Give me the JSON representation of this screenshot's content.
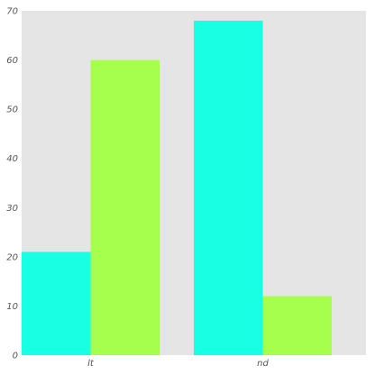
{
  "chart_data": {
    "type": "bar",
    "categories": [
      "lt",
      "nd"
    ],
    "series": [
      {
        "values": [
          21,
          68
        ],
        "color": "#19ffe3"
      },
      {
        "values": [
          60,
          12
        ],
        "color": "#a6ff4d"
      }
    ],
    "title": "",
    "xlabel": "",
    "ylabel": "",
    "ylim": [
      0,
      70
    ],
    "yticks": [
      0,
      10,
      20,
      30,
      40,
      50,
      60,
      70
    ],
    "grid": false,
    "legend": "none",
    "plot_background": "#e5e5e5"
  }
}
